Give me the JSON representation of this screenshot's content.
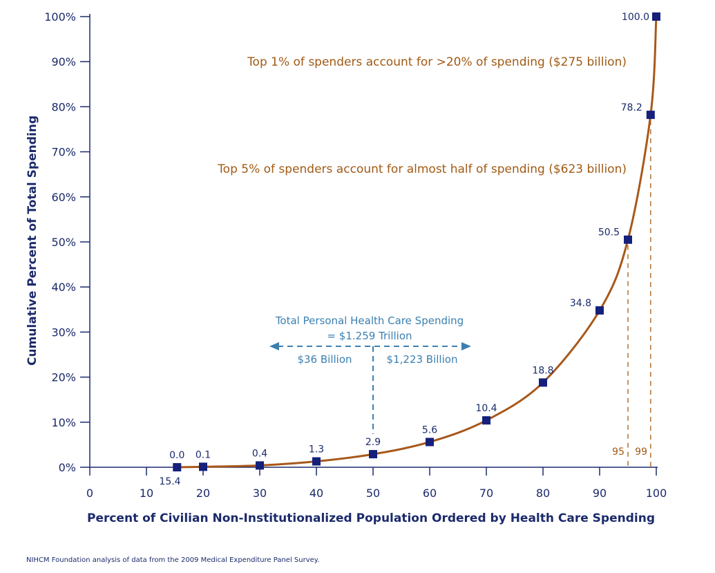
{
  "chart_data": {
    "type": "line",
    "title": "",
    "xlabel": "Percent of Civilian Non-Institutionalized Population Ordered by Health Care Spending",
    "ylabel": "Cumulative Percent of Total Spending",
    "xlim": [
      0,
      100
    ],
    "ylim": [
      0,
      100
    ],
    "x_ticks": [
      "0",
      "10",
      "20",
      "30",
      "40",
      "50",
      "60",
      "70",
      "80",
      "90",
      "100"
    ],
    "y_ticks": [
      "0%",
      "10%",
      "20%",
      "30%",
      "40%",
      "50%",
      "60%",
      "70%",
      "80%",
      "90%",
      "100%"
    ],
    "grid": false,
    "line_color": "#a8581a",
    "marker_color": "#14207a",
    "points": [
      {
        "x": 15.4,
        "y": 0.0,
        "label": "0.0"
      },
      {
        "x": 20,
        "y": 0.1,
        "label": "0.1"
      },
      {
        "x": 30,
        "y": 0.4,
        "label": "0.4"
      },
      {
        "x": 40,
        "y": 1.3,
        "label": "1.3"
      },
      {
        "x": 50,
        "y": 2.9,
        "label": "2.9"
      },
      {
        "x": 60,
        "y": 5.6,
        "label": "5.6"
      },
      {
        "x": 70,
        "y": 10.4,
        "label": "10.4"
      },
      {
        "x": 80,
        "y": 18.8,
        "label": "18.8"
      },
      {
        "x": 90,
        "y": 34.8,
        "label": "34.8"
      },
      {
        "x": 95,
        "y": 50.5,
        "label": "50.5"
      },
      {
        "x": 99,
        "y": 78.2,
        "label": "78.2"
      },
      {
        "x": 100,
        "y": 100.0,
        "label": "100.0"
      }
    ],
    "x_start_label": "15.4",
    "annotations": {
      "top1": "Top 1% of spenders account for >20% of spending ($275 billion)",
      "top5": "Top 5% of spenders account for almost half of spending ($623 billion)",
      "total_line1": "Total Personal Health Care Spending",
      "total_line2": "= $1.259 Trillion",
      "left_amount": "$36 Billion",
      "right_amount": "$1,223 Billion",
      "marker95": "95",
      "marker99": "99"
    },
    "split_x": 50,
    "guide_x": [
      95,
      99
    ]
  },
  "source_note": "NIHCM Foundation analysis of data from the 2009 Medical Expenditure Panel Survey."
}
